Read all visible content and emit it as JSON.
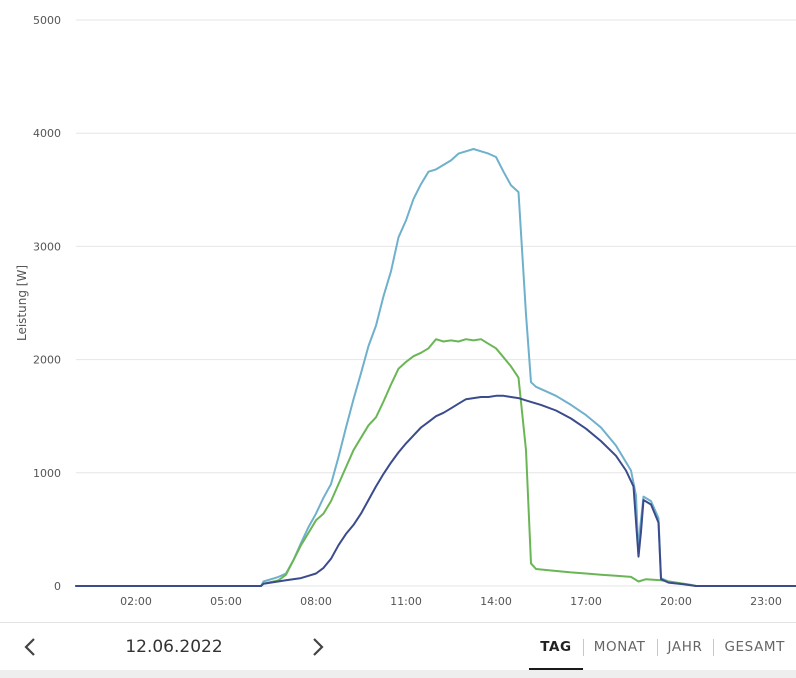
{
  "chart_data": {
    "type": "line",
    "ylabel": "Leistung [W]",
    "xlabel": "",
    "ylim": [
      0,
      5000
    ],
    "xlim": [
      "00:00",
      "24:00"
    ],
    "yticks": [
      "0",
      "1000",
      "2000",
      "3000",
      "4000",
      "5000"
    ],
    "xticks": [
      "02:00",
      "05:00",
      "08:00",
      "11:00",
      "14:00",
      "17:00",
      "20:00",
      "23:00"
    ],
    "grid": true,
    "series": [
      {
        "color": "#6fb0cc",
        "points": [
          [
            "00:00",
            0
          ],
          [
            "06:10",
            0
          ],
          [
            "06:15",
            40
          ],
          [
            "06:45",
            80
          ],
          [
            "07:00",
            110
          ],
          [
            "07:15",
            230
          ],
          [
            "07:30",
            380
          ],
          [
            "07:45",
            520
          ],
          [
            "08:00",
            640
          ],
          [
            "08:15",
            780
          ],
          [
            "08:30",
            900
          ],
          [
            "08:45",
            1140
          ],
          [
            "09:00",
            1400
          ],
          [
            "09:15",
            1650
          ],
          [
            "09:30",
            1880
          ],
          [
            "09:45",
            2120
          ],
          [
            "10:00",
            2300
          ],
          [
            "10:15",
            2560
          ],
          [
            "10:30",
            2780
          ],
          [
            "10:45",
            3080
          ],
          [
            "11:00",
            3230
          ],
          [
            "11:15",
            3420
          ],
          [
            "11:30",
            3550
          ],
          [
            "11:45",
            3660
          ],
          [
            "12:00",
            3680
          ],
          [
            "12:15",
            3720
          ],
          [
            "12:30",
            3760
          ],
          [
            "12:45",
            3820
          ],
          [
            "13:00",
            3840
          ],
          [
            "13:15",
            3860
          ],
          [
            "13:30",
            3840
          ],
          [
            "13:45",
            3820
          ],
          [
            "14:00",
            3790
          ],
          [
            "14:15",
            3660
          ],
          [
            "14:30",
            3540
          ],
          [
            "14:45",
            3480
          ],
          [
            "15:00",
            2400
          ],
          [
            "15:10",
            1800
          ],
          [
            "15:20",
            1760
          ],
          [
            "15:40",
            1720
          ],
          [
            "16:00",
            1680
          ],
          [
            "16:30",
            1600
          ],
          [
            "17:00",
            1510
          ],
          [
            "17:30",
            1400
          ],
          [
            "18:00",
            1240
          ],
          [
            "18:30",
            1020
          ],
          [
            "18:40",
            800
          ],
          [
            "18:45",
            280
          ],
          [
            "18:48",
            500
          ],
          [
            "18:55",
            790
          ],
          [
            "19:10",
            750
          ],
          [
            "19:25",
            600
          ],
          [
            "19:30",
            70
          ],
          [
            "19:45",
            40
          ],
          [
            "20:15",
            20
          ],
          [
            "20:40",
            0
          ],
          [
            "23:59",
            0
          ]
        ]
      },
      {
        "color": "#6ab656",
        "points": [
          [
            "00:00",
            0
          ],
          [
            "06:10",
            0
          ],
          [
            "06:15",
            20
          ],
          [
            "06:45",
            50
          ],
          [
            "07:00",
            100
          ],
          [
            "07:15",
            230
          ],
          [
            "07:30",
            360
          ],
          [
            "07:45",
            470
          ],
          [
            "08:00",
            580
          ],
          [
            "08:15",
            640
          ],
          [
            "08:30",
            750
          ],
          [
            "08:45",
            900
          ],
          [
            "09:00",
            1050
          ],
          [
            "09:15",
            1200
          ],
          [
            "09:30",
            1310
          ],
          [
            "09:45",
            1420
          ],
          [
            "10:00",
            1490
          ],
          [
            "10:15",
            1630
          ],
          [
            "10:30",
            1780
          ],
          [
            "10:45",
            1920
          ],
          [
            "11:00",
            1980
          ],
          [
            "11:15",
            2030
          ],
          [
            "11:30",
            2060
          ],
          [
            "11:45",
            2100
          ],
          [
            "12:00",
            2180
          ],
          [
            "12:15",
            2160
          ],
          [
            "12:30",
            2170
          ],
          [
            "12:45",
            2160
          ],
          [
            "13:00",
            2180
          ],
          [
            "13:15",
            2170
          ],
          [
            "13:30",
            2180
          ],
          [
            "13:45",
            2140
          ],
          [
            "14:00",
            2100
          ],
          [
            "14:15",
            2020
          ],
          [
            "14:30",
            1940
          ],
          [
            "14:45",
            1840
          ],
          [
            "15:00",
            1200
          ],
          [
            "15:10",
            200
          ],
          [
            "15:20",
            150
          ],
          [
            "15:45",
            140
          ],
          [
            "16:30",
            120
          ],
          [
            "17:00",
            110
          ],
          [
            "17:30",
            100
          ],
          [
            "18:00",
            90
          ],
          [
            "18:30",
            80
          ],
          [
            "18:45",
            40
          ],
          [
            "19:00",
            60
          ],
          [
            "19:30",
            50
          ],
          [
            "20:00",
            30
          ],
          [
            "20:30",
            10
          ],
          [
            "20:40",
            0
          ],
          [
            "23:59",
            0
          ]
        ]
      },
      {
        "color": "#3b4b8c",
        "points": [
          [
            "00:00",
            0
          ],
          [
            "06:10",
            0
          ],
          [
            "06:15",
            20
          ],
          [
            "07:00",
            50
          ],
          [
            "07:30",
            70
          ],
          [
            "07:45",
            90
          ],
          [
            "08:00",
            110
          ],
          [
            "08:15",
            160
          ],
          [
            "08:30",
            240
          ],
          [
            "08:45",
            360
          ],
          [
            "09:00",
            460
          ],
          [
            "09:15",
            540
          ],
          [
            "09:30",
            640
          ],
          [
            "09:45",
            760
          ],
          [
            "10:00",
            880
          ],
          [
            "10:15",
            990
          ],
          [
            "10:30",
            1090
          ],
          [
            "10:45",
            1180
          ],
          [
            "11:00",
            1260
          ],
          [
            "11:15",
            1330
          ],
          [
            "11:30",
            1400
          ],
          [
            "11:45",
            1450
          ],
          [
            "12:00",
            1500
          ],
          [
            "12:15",
            1530
          ],
          [
            "12:30",
            1570
          ],
          [
            "12:45",
            1610
          ],
          [
            "13:00",
            1650
          ],
          [
            "13:15",
            1660
          ],
          [
            "13:30",
            1670
          ],
          [
            "13:45",
            1670
          ],
          [
            "14:00",
            1680
          ],
          [
            "14:15",
            1680
          ],
          [
            "14:30",
            1670
          ],
          [
            "14:45",
            1660
          ],
          [
            "15:00",
            1640
          ],
          [
            "15:30",
            1600
          ],
          [
            "16:00",
            1550
          ],
          [
            "16:30",
            1480
          ],
          [
            "17:00",
            1390
          ],
          [
            "17:30",
            1280
          ],
          [
            "18:00",
            1150
          ],
          [
            "18:20",
            1020
          ],
          [
            "18:35",
            880
          ],
          [
            "18:45",
            260
          ],
          [
            "18:50",
            480
          ],
          [
            "18:55",
            760
          ],
          [
            "19:10",
            720
          ],
          [
            "19:25",
            560
          ],
          [
            "19:30",
            60
          ],
          [
            "19:45",
            30
          ],
          [
            "20:15",
            15
          ],
          [
            "20:40",
            0
          ],
          [
            "23:59",
            0
          ]
        ]
      }
    ]
  },
  "nav": {
    "date": "12.06.2022",
    "prev_icon": "chevron-left-icon",
    "next_icon": "chevron-right-icon"
  },
  "tabs": [
    {
      "label": "TAG",
      "active": true
    },
    {
      "label": "MONAT",
      "active": false
    },
    {
      "label": "JAHR",
      "active": false
    },
    {
      "label": "GESAMT",
      "active": false
    }
  ]
}
